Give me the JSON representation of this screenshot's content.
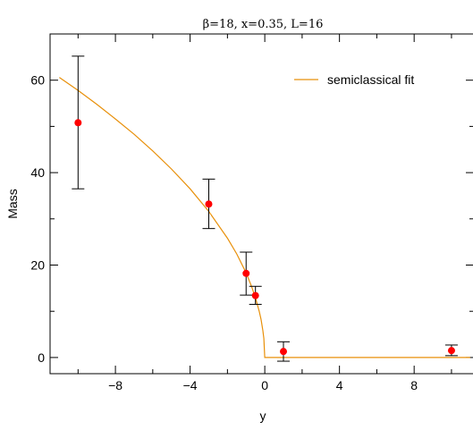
{
  "chart_data": {
    "type": "scatter",
    "title": "β=18, x=0.35, L=16",
    "xlabel": "y",
    "ylabel": "Mass",
    "xlim": [
      -11.5,
      11.2
    ],
    "ylim": [
      -3.5,
      70
    ],
    "xticks": [
      -8,
      -4,
      0,
      4,
      8
    ],
    "xtick_labels": [
      "−8",
      "−4",
      "0",
      "4",
      "8"
    ],
    "yticks": [
      0,
      20,
      40,
      60
    ],
    "ytick_labels": [
      "0",
      "20",
      "40",
      "60"
    ],
    "x_minor_ticks": [
      -10,
      -6,
      -2,
      2,
      6,
      10
    ],
    "y_minor_ticks": [
      10,
      30,
      50
    ],
    "grid": false,
    "legend_position": "top-right",
    "series": [
      {
        "type": "scatter",
        "marker": "circle",
        "color": "#ff0000",
        "x": [
          -10,
          -3,
          -1,
          -0.5,
          1,
          10
        ],
        "y": [
          50.8,
          33.2,
          18.2,
          13.4,
          1.3,
          1.5
        ],
        "err_low": [
          36.5,
          27.9,
          13.5,
          11.5,
          -0.8,
          0.4
        ],
        "err_high": [
          65.2,
          38.6,
          22.8,
          15.4,
          3.4,
          2.7
        ]
      },
      {
        "name": "semiclassical fit",
        "type": "line",
        "color": "#e8900a",
        "x": [
          -11,
          -10,
          -9,
          -8,
          -7,
          -6,
          -5,
          -4,
          -3,
          -2,
          -1.5,
          -1,
          -0.7,
          -0.5,
          -0.3,
          -0.2,
          -0.1,
          -0.05,
          0,
          11
        ],
        "y": [
          60.6,
          57.8,
          54.8,
          51.6,
          48.3,
          44.7,
          40.8,
          36.5,
          31.6,
          25.8,
          22.4,
          18.3,
          15.3,
          12.9,
          10.0,
          8.2,
          5.8,
          4.1,
          0,
          0
        ]
      }
    ]
  }
}
